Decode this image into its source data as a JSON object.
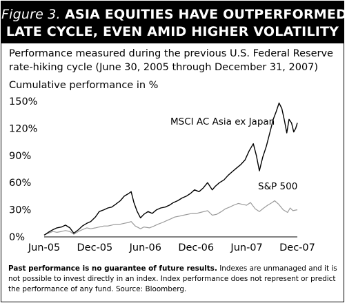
{
  "header": {
    "figure_label": "Figure 3.",
    "title_line1": "ASIA EQUITIES HAVE OUTPERFORMED",
    "title_line2": "LATE CYCLE, EVEN AMID HIGHER VOLATILITY"
  },
  "subtitle_line1": "Performance measured during the previous U.S. Federal Reserve",
  "subtitle_line2": "rate-hiking cycle (June 30, 2005 through December 31, 2007)",
  "footnote": {
    "bold": "Past performance is no guarantee of future results.",
    "text": " Indexes are unmanaged and it is not possible to invest directly in an index. Index performance does not represent or predict the performance of any fund. Source: Bloomberg."
  },
  "chart_data": {
    "type": "line",
    "ylabel": "Cumulative performance in %",
    "xlabel": "",
    "x_ticks": [
      "Jun-05",
      "Dec-05",
      "Jun-06",
      "Dec-06",
      "Jun-07",
      "Dec-07"
    ],
    "y_ticks": [
      "0%",
      "30%",
      "60%",
      "90%",
      "120%",
      "150%"
    ],
    "ylim": [
      0,
      150
    ],
    "grid": false,
    "series": [
      {
        "name": "MSCI AC Asia ex Japan",
        "color": "#000000",
        "points": [
          [
            "2005-06-30",
            2
          ],
          [
            "2005-07-15",
            5
          ],
          [
            "2005-08-01",
            8
          ],
          [
            "2005-08-15",
            10
          ],
          [
            "2005-09-01",
            11
          ],
          [
            "2005-09-15",
            13
          ],
          [
            "2005-10-01",
            10
          ],
          [
            "2005-10-15",
            4
          ],
          [
            "2005-11-01",
            8
          ],
          [
            "2005-11-15",
            12
          ],
          [
            "2005-12-01",
            15
          ],
          [
            "2005-12-15",
            17
          ],
          [
            "2006-01-01",
            22
          ],
          [
            "2006-01-15",
            28
          ],
          [
            "2006-02-01",
            30
          ],
          [
            "2006-02-15",
            32
          ],
          [
            "2006-03-01",
            33
          ],
          [
            "2006-03-15",
            36
          ],
          [
            "2006-04-01",
            40
          ],
          [
            "2006-04-15",
            45
          ],
          [
            "2006-05-01",
            48
          ],
          [
            "2006-05-10",
            50
          ],
          [
            "2006-05-20",
            38
          ],
          [
            "2006-06-01",
            28
          ],
          [
            "2006-06-13",
            21
          ],
          [
            "2006-06-25",
            25
          ],
          [
            "2006-07-10",
            28
          ],
          [
            "2006-07-25",
            26
          ],
          [
            "2006-08-10",
            30
          ],
          [
            "2006-08-25",
            32
          ],
          [
            "2006-09-10",
            33
          ],
          [
            "2006-09-25",
            35
          ],
          [
            "2006-10-10",
            38
          ],
          [
            "2006-10-25",
            40
          ],
          [
            "2006-11-10",
            43
          ],
          [
            "2006-11-25",
            45
          ],
          [
            "2006-12-10",
            48
          ],
          [
            "2006-12-25",
            52
          ],
          [
            "2007-01-10",
            50
          ],
          [
            "2007-01-25",
            54
          ],
          [
            "2007-02-10",
            60
          ],
          [
            "2007-02-27",
            52
          ],
          [
            "2007-03-10",
            56
          ],
          [
            "2007-03-25",
            60
          ],
          [
            "2007-04-10",
            63
          ],
          [
            "2007-04-25",
            68
          ],
          [
            "2007-05-10",
            72
          ],
          [
            "2007-05-25",
            76
          ],
          [
            "2007-06-10",
            80
          ],
          [
            "2007-06-25",
            85
          ],
          [
            "2007-07-10",
            95
          ],
          [
            "2007-07-25",
            103
          ],
          [
            "2007-08-05",
            90
          ],
          [
            "2007-08-16",
            73
          ],
          [
            "2007-08-28",
            88
          ],
          [
            "2007-09-10",
            100
          ],
          [
            "2007-09-25",
            118
          ],
          [
            "2007-10-05",
            130
          ],
          [
            "2007-10-15",
            138
          ],
          [
            "2007-10-26",
            148
          ],
          [
            "2007-11-05",
            142
          ],
          [
            "2007-11-15",
            128
          ],
          [
            "2007-11-23",
            115
          ],
          [
            "2007-12-01",
            130
          ],
          [
            "2007-12-10",
            126
          ],
          [
            "2007-12-18",
            116
          ],
          [
            "2007-12-25",
            120
          ],
          [
            "2007-12-31",
            126
          ]
        ]
      },
      {
        "name": "S&P 500",
        "color": "#9a9a9a",
        "points": [
          [
            "2005-06-30",
            2
          ],
          [
            "2005-07-15",
            4
          ],
          [
            "2005-08-01",
            6
          ],
          [
            "2005-08-15",
            5
          ],
          [
            "2005-09-01",
            6
          ],
          [
            "2005-09-15",
            7
          ],
          [
            "2005-10-01",
            6
          ],
          [
            "2005-10-15",
            3
          ],
          [
            "2005-11-01",
            6
          ],
          [
            "2005-11-15",
            8
          ],
          [
            "2005-12-01",
            10
          ],
          [
            "2005-12-15",
            9
          ],
          [
            "2006-01-01",
            10
          ],
          [
            "2006-01-15",
            11
          ],
          [
            "2006-02-01",
            12
          ],
          [
            "2006-02-15",
            12
          ],
          [
            "2006-03-01",
            13
          ],
          [
            "2006-03-15",
            14
          ],
          [
            "2006-04-01",
            14
          ],
          [
            "2006-04-15",
            15
          ],
          [
            "2006-05-01",
            16
          ],
          [
            "2006-05-10",
            17
          ],
          [
            "2006-05-25",
            12
          ],
          [
            "2006-06-13",
            9
          ],
          [
            "2006-06-25",
            11
          ],
          [
            "2006-07-15",
            10
          ],
          [
            "2006-08-01",
            12
          ],
          [
            "2006-08-15",
            14
          ],
          [
            "2006-09-01",
            16
          ],
          [
            "2006-09-15",
            18
          ],
          [
            "2006-10-01",
            20
          ],
          [
            "2006-10-15",
            22
          ],
          [
            "2006-11-01",
            23
          ],
          [
            "2006-11-15",
            24
          ],
          [
            "2006-12-01",
            25
          ],
          [
            "2006-12-15",
            26
          ],
          [
            "2007-01-01",
            26
          ],
          [
            "2007-01-15",
            27
          ],
          [
            "2007-02-10",
            29
          ],
          [
            "2007-02-27",
            24
          ],
          [
            "2007-03-15",
            25
          ],
          [
            "2007-04-01",
            28
          ],
          [
            "2007-04-15",
            31
          ],
          [
            "2007-05-01",
            33
          ],
          [
            "2007-05-15",
            35
          ],
          [
            "2007-06-01",
            37
          ],
          [
            "2007-06-15",
            36
          ],
          [
            "2007-07-01",
            35
          ],
          [
            "2007-07-15",
            38
          ],
          [
            "2007-08-01",
            31
          ],
          [
            "2007-08-16",
            28
          ],
          [
            "2007-09-01",
            32
          ],
          [
            "2007-09-15",
            35
          ],
          [
            "2007-10-01",
            38
          ],
          [
            "2007-10-10",
            40
          ],
          [
            "2007-10-25",
            36
          ],
          [
            "2007-11-10",
            30
          ],
          [
            "2007-11-26",
            27
          ],
          [
            "2007-12-05",
            32
          ],
          [
            "2007-12-15",
            29
          ],
          [
            "2007-12-31",
            30
          ]
        ]
      }
    ]
  }
}
